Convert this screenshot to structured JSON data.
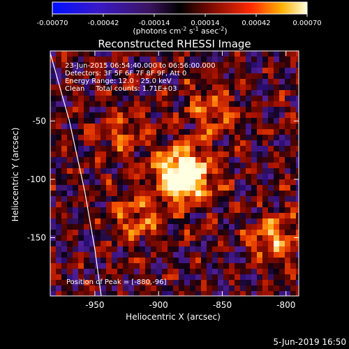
{
  "chart_data": {
    "type": "heatmap",
    "title": "Reconstructed RHESSI Image",
    "xlabel": "Heliocentric X (arcsec)",
    "ylabel": "Heliocentric Y (arcsec)",
    "xlim": [
      -985,
      -790
    ],
    "ylim": [
      -200,
      10
    ],
    "xticks": [
      -950,
      -900,
      -850,
      -800
    ],
    "yticks": [
      -150,
      -100,
      -50
    ],
    "colorbar": {
      "range": [
        -0.0007,
        0.0007
      ],
      "ticks": [
        "-0.00070",
        "-0.00042",
        "-0.00014",
        "0.00014",
        "0.00042",
        "0.00070"
      ],
      "label_prefix": "(photons cm",
      "label_exp1": "-2",
      "label_mid": " s",
      "label_exp2": "-1",
      "label_mid2": " asec",
      "label_exp3": "-2",
      "label_suffix": ")"
    },
    "info_lines": [
      "23-Jun-2015 06:54:40.000 to 06:56:00.000",
      "Detectors: 3F 5F 6F 7F 8F 9F, Att 0",
      "Energy Range: 12.0 - 25.0 keV",
      "Clean     Total counts: 1.71E+03"
    ],
    "peak_label": "Position of Peak = [-880,-96]",
    "peak": [
      -880,
      -96
    ],
    "sources": [
      {
        "x": -880,
        "y": -96,
        "amp": 1.0
      },
      {
        "x": -808,
        "y": -150,
        "amp": 0.45
      },
      {
        "x": -915,
        "y": -133,
        "amp": 0.38
      },
      {
        "x": -860,
        "y": -40,
        "amp": 0.32
      },
      {
        "x": -930,
        "y": -60,
        "amp": 0.3
      }
    ],
    "limb_curve": [
      [
        -985,
        8
      ],
      [
        -970,
        -50
      ],
      [
        -958,
        -110
      ],
      [
        -950,
        -160
      ],
      [
        -945,
        -200
      ]
    ]
  },
  "footer_date": "5-Jun-2019 16:50"
}
